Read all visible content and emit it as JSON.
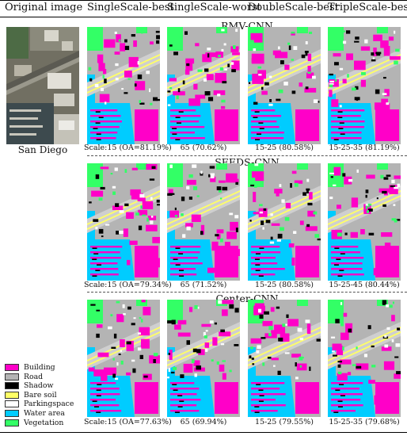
{
  "headers": {
    "original": "Original image",
    "col1": "SingleScale-best",
    "col2": "SingleScale-worst",
    "col3": "DoubleScale-best",
    "col4": "TripleScale-best"
  },
  "original_caption": "San Diego",
  "sections": [
    {
      "title": "RMV-CNN",
      "captions": [
        "Scale:15 (OA=81.19%)",
        "65 (70.62%)",
        "15-25 (80.58%)",
        "15-25-35 (81.19%)"
      ]
    },
    {
      "title": "SEEDS-CNN",
      "captions": [
        "Scale:15 (OA=79.34%)",
        "65 (71.52%)",
        "15-25 (80.58%)",
        "15-25-45 (80.44%)"
      ]
    },
    {
      "title": "Center-CNN",
      "captions": [
        "Scale:15 (OA=77.63%)",
        "65 (69.94%)",
        "15-25 (79.55%)",
        "15-25-35 (79.68%)"
      ]
    }
  ],
  "legend": [
    {
      "label": "Building",
      "color": "#ff00c8"
    },
    {
      "label": "Road",
      "color": "#b4b4b4"
    },
    {
      "label": "Shadow",
      "color": "#000000"
    },
    {
      "label": "Bare soil",
      "color": "#ffff66"
    },
    {
      "label": "Parkingspace",
      "color": "#ffffff"
    },
    {
      "label": "Water area",
      "color": "#00ccff"
    },
    {
      "label": "Vegetation",
      "color": "#33ff66"
    }
  ]
}
